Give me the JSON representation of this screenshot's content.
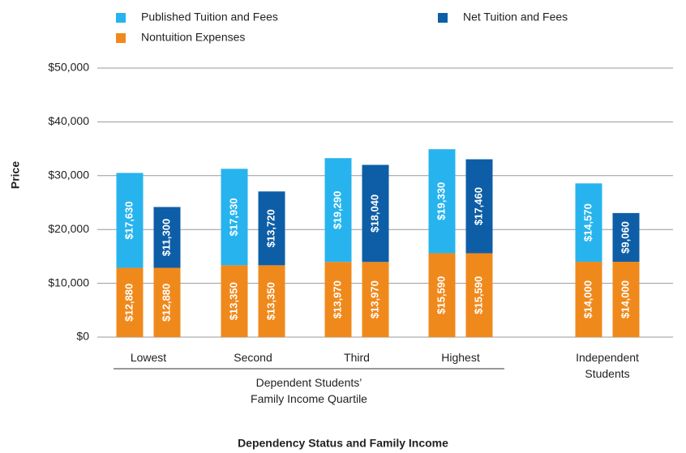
{
  "chart_data": {
    "type": "stacked_bar_pair",
    "x_label": "Dependency Status and Family Income",
    "y_label": "Price",
    "group_label": "Dependent Students’ Family Income Quartile",
    "categories": [
      "Lowest",
      "Second",
      "Third",
      "Highest",
      "Independent Students"
    ],
    "series": [
      {
        "name": "Published Tuition and Fees",
        "color": "#27b4ee",
        "values": [
          17630,
          17930,
          19290,
          19330,
          14570
        ],
        "value_labels": [
          "$17,630",
          "$17,930",
          "$19,290",
          "$19,330",
          "$14,570"
        ]
      },
      {
        "name": "Net Tuition and Fees",
        "color": "#0d5ea6",
        "values": [
          11300,
          13720,
          18040,
          17460,
          9060
        ],
        "value_labels": [
          "$11,300",
          "$13,720",
          "$18,040",
          "$17,460",
          "$9,060"
        ]
      },
      {
        "name": "Nontuition Expenses",
        "color": "#f0891c",
        "values": [
          12880,
          13350,
          13970,
          15590,
          14000
        ],
        "value_labels": [
          "$12,880",
          "$13,350",
          "$13,970",
          "$15,590",
          "$14,000"
        ]
      }
    ],
    "ylim": [
      0,
      50000
    ],
    "yticks": [
      {
        "value": 0,
        "label": "$0"
      },
      {
        "value": 10000,
        "label": "$10,000"
      },
      {
        "value": 20000,
        "label": "$20,000"
      },
      {
        "value": 30000,
        "label": "$30,000"
      },
      {
        "value": 40000,
        "label": "$40,000"
      },
      {
        "value": 50000,
        "label": "$50,000"
      }
    ],
    "grid": true
  }
}
